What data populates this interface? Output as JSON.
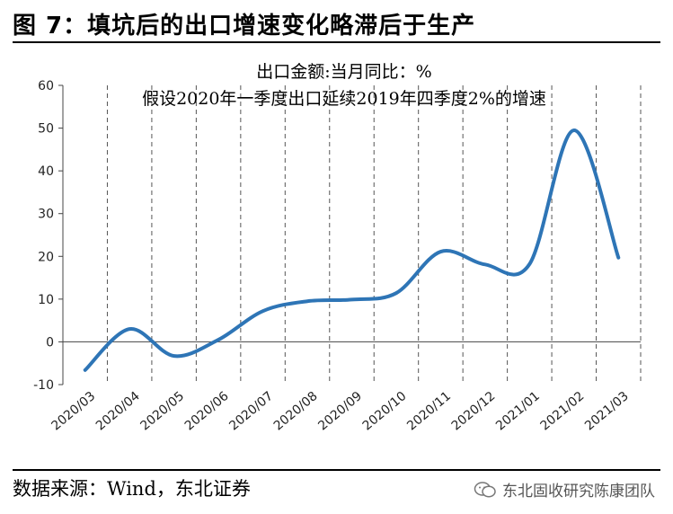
{
  "header": {
    "title": "图 7：填坑后的出口增速变化略滞后于生产"
  },
  "footer": {
    "source": "数据来源：Wind，东北证券",
    "watermark": "东北固收研究陈康团队",
    "watermark_icon": "wechat-icon"
  },
  "chart_data": {
    "type": "line",
    "title": "",
    "annotations": [
      "出口金额:当月同比：%",
      "假设2020年一季度出口延续2019年四季度2%的增速"
    ],
    "xlabel": "",
    "ylabel": "",
    "categories": [
      "2020/03",
      "2020/04",
      "2020/05",
      "2020/06",
      "2020/07",
      "2020/08",
      "2020/09",
      "2020/10",
      "2020/11",
      "2020/12",
      "2021/01",
      "2021/02",
      "2021/03"
    ],
    "y_ticks": [
      "60",
      "50",
      "40",
      "30",
      "20",
      "10",
      "0",
      "-10"
    ],
    "ylim": [
      -10,
      60
    ],
    "series": [
      {
        "values": [
          -6.6,
          3.0,
          -3.3,
          0.5,
          7.2,
          9.5,
          9.9,
          11.4,
          21.1,
          18.1,
          18.2,
          49.5,
          19.7
        ],
        "color": "#2e75b6"
      }
    ],
    "grid": {
      "vertical": "dashed",
      "horizontal": false
    },
    "legend": "none"
  }
}
